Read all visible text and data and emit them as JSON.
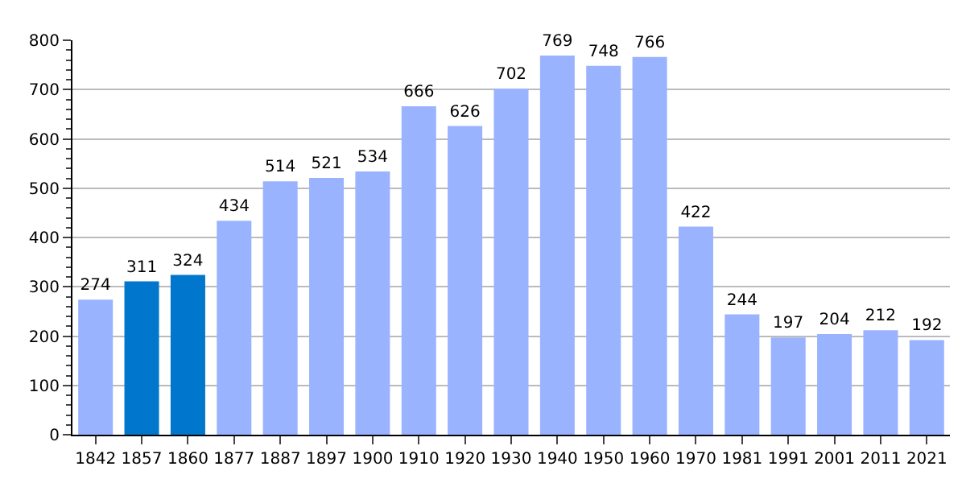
{
  "chart_data": {
    "type": "bar",
    "categories": [
      "1842",
      "1857",
      "1860",
      "1877",
      "1887",
      "1897",
      "1900",
      "1910",
      "1920",
      "1930",
      "1940",
      "1950",
      "1960",
      "1970",
      "1981",
      "1991",
      "2001",
      "2011",
      "2021"
    ],
    "values": [
      274,
      311,
      324,
      434,
      514,
      521,
      534,
      666,
      626,
      702,
      769,
      748,
      766,
      422,
      244,
      197,
      204,
      212,
      192
    ],
    "colors": [
      "#99b3ff",
      "#0077cc",
      "#0077cc",
      "#99b3ff",
      "#99b3ff",
      "#99b3ff",
      "#99b3ff",
      "#99b3ff",
      "#99b3ff",
      "#99b3ff",
      "#99b3ff",
      "#99b3ff",
      "#99b3ff",
      "#99b3ff",
      "#99b3ff",
      "#99b3ff",
      "#99b3ff",
      "#99b3ff",
      "#99b3ff"
    ],
    "ylim": [
      0,
      800
    ],
    "yticks": [
      0,
      100,
      200,
      300,
      400,
      500,
      600,
      700,
      800
    ],
    "grid": "y",
    "data_labels": true
  }
}
